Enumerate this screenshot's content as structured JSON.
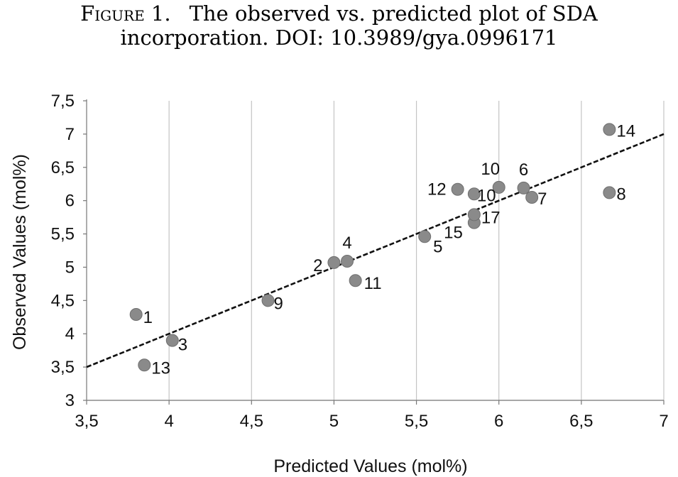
{
  "figure": {
    "label": "Figure 1.",
    "caption_line1": "The observed vs. predicted plot of SDA",
    "caption_line2": "incorporation. DOI: 10.3989/gya.0996171"
  },
  "chart_data": {
    "type": "scatter",
    "xlabel": "Predicted Values (mol%)",
    "ylabel": "Observed Values (mol%)",
    "xlim": [
      3.5,
      7
    ],
    "ylim": [
      3,
      7.5
    ],
    "x_ticks": [
      "3,5",
      "4",
      "4,5",
      "5",
      "5,5",
      "6",
      "6,5",
      "7"
    ],
    "y_ticks": [
      "3",
      "3,5",
      "4",
      "4,5",
      "5",
      "5,5",
      "6",
      "6,5",
      "7",
      "7,5"
    ],
    "x_tick_values": [
      3.5,
      4,
      4.5,
      5,
      5.5,
      6,
      6.5,
      7
    ],
    "y_tick_values": [
      3,
      3.5,
      4,
      4.5,
      5,
      5.5,
      6,
      6.5,
      7,
      7.5
    ],
    "grid": "vertical",
    "marker_color": "#8a8a8a",
    "fit_line": {
      "x": [
        3.5,
        7
      ],
      "y": [
        3.5,
        7
      ],
      "style": "dashed"
    },
    "points": [
      {
        "label": "1",
        "x": 3.8,
        "y": 4.29
      },
      {
        "label": "2",
        "x": 5.0,
        "y": 5.07
      },
      {
        "label": "3",
        "x": 4.02,
        "y": 3.9
      },
      {
        "label": "4",
        "x": 5.08,
        "y": 5.09
      },
      {
        "label": "5",
        "x": 5.55,
        "y": 5.46
      },
      {
        "label": "6",
        "x": 6.15,
        "y": 6.19
      },
      {
        "label": "7",
        "x": 6.2,
        "y": 6.05
      },
      {
        "label": "8",
        "x": 6.67,
        "y": 6.12
      },
      {
        "label": "9",
        "x": 4.6,
        "y": 4.5
      },
      {
        "label": "10",
        "x": 6.0,
        "y": 6.2
      },
      {
        "label": "10",
        "x": 5.85,
        "y": 6.1
      },
      {
        "label": "11",
        "x": 5.13,
        "y": 4.8
      },
      {
        "label": "12",
        "x": 5.75,
        "y": 6.17
      },
      {
        "label": "13",
        "x": 3.85,
        "y": 3.53
      },
      {
        "label": "14",
        "x": 6.67,
        "y": 7.07
      },
      {
        "label": "15",
        "x": 5.85,
        "y": 5.67
      },
      {
        "label": "17",
        "x": 5.85,
        "y": 5.79
      }
    ]
  }
}
